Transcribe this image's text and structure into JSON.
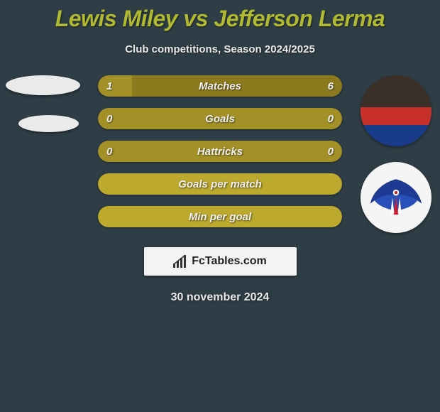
{
  "title": "Lewis Miley vs Jefferson Lerma",
  "subtitle": "Club competitions, Season 2024/2025",
  "date": "30 november 2024",
  "footer_brand": "FcTables.com",
  "colors": {
    "background": "#2f3e46",
    "title": "#b0b930",
    "bar_main": "#a39128",
    "bar_alt": "#bca92e",
    "bar_fill_left": "#8c7a1e",
    "text": "#e8e8e8"
  },
  "bars": [
    {
      "label": "Matches",
      "left": "1",
      "right": "6",
      "left_pct": 14,
      "right_pct": 86,
      "show_vals": true,
      "bg": "#a39128",
      "right_fill": "#8c7a1e"
    },
    {
      "label": "Goals",
      "left": "0",
      "right": "0",
      "left_pct": 0,
      "right_pct": 0,
      "show_vals": true,
      "bg": "#a39128",
      "right_fill": "#a39128"
    },
    {
      "label": "Hattricks",
      "left": "0",
      "right": "0",
      "left_pct": 0,
      "right_pct": 0,
      "show_vals": true,
      "bg": "#a39128",
      "right_fill": "#a39128"
    },
    {
      "label": "Goals per match",
      "left": "",
      "right": "",
      "left_pct": 0,
      "right_pct": 0,
      "show_vals": false,
      "bg": "#bca92e",
      "right_fill": "#bca92e"
    },
    {
      "label": "Min per goal",
      "left": "",
      "right": "",
      "left_pct": 0,
      "right_pct": 0,
      "show_vals": false,
      "bg": "#bca92e",
      "right_fill": "#bca92e"
    }
  ],
  "crest_colors": {
    "wing": "#1f3a93",
    "stripe_red": "#c8202f",
    "stripe_white": "#ffffff"
  }
}
